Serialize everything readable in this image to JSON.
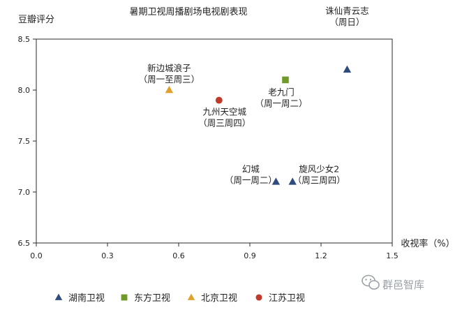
{
  "chart_data": {
    "type": "scatter",
    "title": "暑期卫视周播剧场电视剧表现",
    "ylabel": "豆瓣评分",
    "xlabel": "收视率（%）",
    "xlim": [
      0,
      1.5
    ],
    "ylim": [
      6.5,
      8.5
    ],
    "xticks": [
      "0.0",
      "0.3",
      "0.6",
      "0.9",
      "1.2",
      "1.5"
    ],
    "yticks": [
      "6.5",
      "7.0",
      "7.5",
      "8.0",
      "8.5"
    ],
    "grid": false,
    "legend_position": "bottom",
    "series": [
      {
        "name": "湖南卫视",
        "marker": "triangle",
        "color": "#2f4b7c",
        "points": [
          {
            "x": 1.31,
            "y": 8.2,
            "label": [
              "诛仙青云志",
              "（周日）"
            ]
          },
          {
            "x": 1.01,
            "y": 7.1,
            "label": [
              "幻城",
              "（周一周二）"
            ]
          },
          {
            "x": 1.08,
            "y": 7.1,
            "label": [
              "旋风少女2",
              "（周三周四）"
            ]
          }
        ]
      },
      {
        "name": "东方卫视",
        "marker": "square",
        "color": "#6f9a2a",
        "points": [
          {
            "x": 1.05,
            "y": 8.1,
            "label": [
              "老九门",
              "（周一周二）"
            ]
          }
        ]
      },
      {
        "name": "北京卫视",
        "marker": "triangle",
        "color": "#e2a12c",
        "points": [
          {
            "x": 0.56,
            "y": 8.0,
            "label": [
              "新边城浪子",
              "（周一至周三）"
            ]
          }
        ]
      },
      {
        "name": "江苏卫视",
        "marker": "circle",
        "color": "#c0392b",
        "points": [
          {
            "x": 0.77,
            "y": 7.9,
            "label": [
              "九州天空城",
              "（周三周四）"
            ]
          }
        ]
      }
    ]
  },
  "watermark": {
    "text": "群邑智库",
    "icon": "wechat-icon"
  }
}
